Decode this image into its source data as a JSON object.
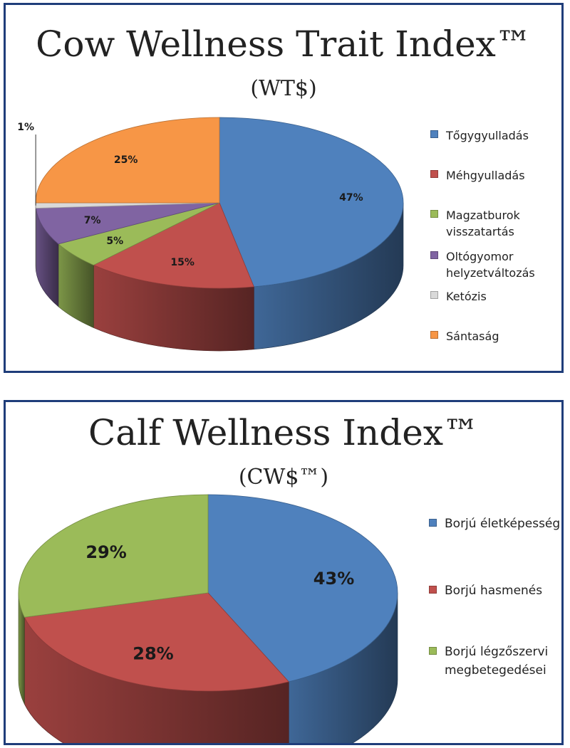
{
  "chart_data": [
    {
      "type": "pie",
      "title": "Cow Wellness Trait Index™",
      "subtitle": "(WT$)",
      "categories": [
        "Tőgygyulladás",
        "Méhgyulladás",
        "Magzatburok visszatartás",
        "Oltógyomor helyzetváltozás",
        "Ketózis",
        "Sántaság"
      ],
      "values": [
        47,
        15,
        5,
        7,
        1,
        25
      ],
      "labels": [
        "47%",
        "15%",
        "5%",
        "7%",
        "1%",
        "25%"
      ],
      "colors": [
        "#4f81bd",
        "#c0504d",
        "#9bbb59",
        "#8064a2",
        "#d9d9d9",
        "#f79646"
      ],
      "legend_position": "right"
    },
    {
      "type": "pie",
      "title": "Calf Wellness Index™",
      "subtitle": "(CW$™)",
      "categories": [
        "Borjú életképesség",
        "Borjú hasmenés",
        "Borjú légzőszervi megbetegedései"
      ],
      "values": [
        43,
        28,
        29
      ],
      "labels": [
        "43%",
        "28%",
        "29%"
      ],
      "colors": [
        "#4f81bd",
        "#c0504d",
        "#9bbb59"
      ],
      "legend_position": "right"
    }
  ]
}
